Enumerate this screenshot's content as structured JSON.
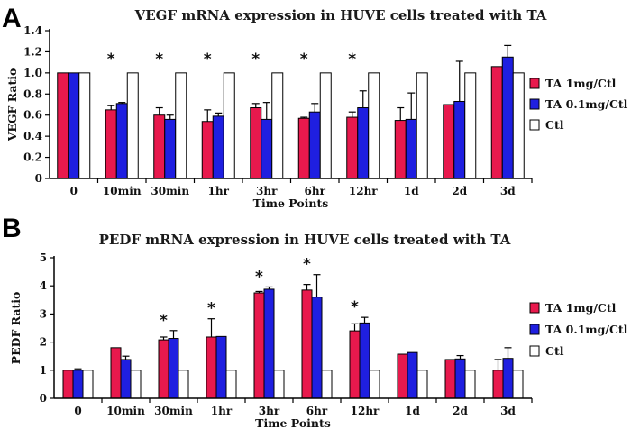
{
  "chart_data": [
    {
      "type": "bar",
      "panel": "A",
      "title": "VEGF mRNA expression in HUVE cells treated with TA",
      "xlabel": "Time Points",
      "ylabel": "VEGF Ratio",
      "ylim": [
        0,
        1.4
      ],
      "yticks": [
        "0",
        "0.2",
        "0.4",
        "0.6",
        "0.8",
        "1.0",
        "1.2",
        "1.4"
      ],
      "categories": [
        "0",
        "10min",
        "30min",
        "1hr",
        "3hr",
        "6hr",
        "12hr",
        "1d",
        "2d",
        "3d"
      ],
      "series": [
        {
          "name": "TA 1mg/Ctl",
          "color": "#e8194d",
          "values": [
            1.0,
            0.65,
            0.6,
            0.54,
            0.67,
            0.57,
            0.58,
            0.55,
            0.7,
            1.06
          ],
          "errors": [
            0,
            0.04,
            0.07,
            0.11,
            0.04,
            0.01,
            0.05,
            0.12,
            0,
            0
          ]
        },
        {
          "name": "TA 0.1mg/Ctl",
          "color": "#1f1fe0",
          "values": [
            1.0,
            0.71,
            0.56,
            0.59,
            0.56,
            0.63,
            0.67,
            0.56,
            0.73,
            1.15
          ],
          "errors": [
            0,
            0.01,
            0.04,
            0.03,
            0.16,
            0.08,
            0.16,
            0.25,
            0.38,
            0.11
          ]
        },
        {
          "name": "Ctl",
          "color": "#ffffff",
          "values": [
            1.0,
            1.0,
            1.0,
            1.0,
            1.0,
            1.0,
            1.0,
            1.0,
            1.0,
            1.0
          ],
          "errors": [
            0,
            0,
            0,
            0,
            0,
            0,
            0,
            0,
            0,
            0
          ]
        }
      ],
      "significance": [
        "",
        "*",
        "*",
        "*",
        "*",
        "*",
        "*",
        "",
        "",
        ""
      ],
      "legend_position": "right"
    },
    {
      "type": "bar",
      "panel": "B",
      "title": "PEDF mRNA expression in HUVE cells treated with TA",
      "xlabel": "Time Points",
      "ylabel": "PEDF Ratio",
      "ylim": [
        0,
        5
      ],
      "yticks": [
        "0",
        "1",
        "2",
        "3",
        "4",
        "5"
      ],
      "categories": [
        "0",
        "10min",
        "30min",
        "1hr",
        "3hr",
        "6hr",
        "12hr",
        "1d",
        "2d",
        "3d"
      ],
      "series": [
        {
          "name": "TA 1mg/Ctl",
          "color": "#e8194d",
          "values": [
            1.0,
            1.8,
            2.08,
            2.18,
            3.75,
            3.85,
            2.4,
            1.57,
            1.38,
            1.0
          ],
          "errors": [
            0,
            0,
            0.1,
            0.65,
            0.05,
            0.2,
            0.25,
            0,
            0,
            0.38
          ]
        },
        {
          "name": "TA 0.1mg/Ctl",
          "color": "#1f1fe0",
          "values": [
            1.0,
            1.38,
            2.13,
            2.2,
            3.88,
            3.6,
            2.68,
            1.63,
            1.4,
            1.42
          ],
          "errors": [
            0.05,
            0.12,
            0.28,
            0,
            0.08,
            0.8,
            0.2,
            0,
            0.12,
            0.38
          ]
        },
        {
          "name": "Ctl",
          "color": "#ffffff",
          "values": [
            1.0,
            1.0,
            1.0,
            1.0,
            1.0,
            1.0,
            1.0,
            1.0,
            1.0,
            1.0
          ],
          "errors": [
            0,
            0,
            0,
            0,
            0,
            0,
            0,
            0,
            0,
            0
          ]
        }
      ],
      "significance": [
        "",
        "",
        "*",
        "*",
        "*",
        "*",
        "*",
        "",
        "",
        ""
      ],
      "legend_position": "right"
    }
  ]
}
